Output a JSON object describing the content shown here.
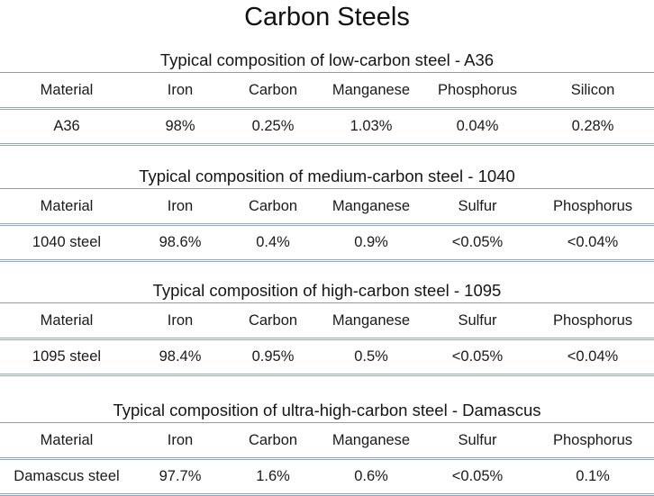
{
  "title": "Carbon Steels",
  "sections": [
    {
      "title": "Typical composition of low-carbon steel - A36",
      "headers": [
        "Material",
        "Iron",
        "Carbon",
        "Manganese",
        "Phosphorus",
        "Silicon"
      ],
      "values": [
        "A36",
        "98%",
        "0.25%",
        "1.03%",
        "0.04%",
        "0.28%"
      ]
    },
    {
      "title": "Typical composition of medium-carbon steel - 1040",
      "headers": [
        "Material",
        "Iron",
        "Carbon",
        "Manganese",
        "Sulfur",
        "Phosphorus"
      ],
      "values": [
        "1040 steel",
        "98.6%",
        "0.4%",
        "0.9%",
        "<0.05%",
        "<0.04%"
      ]
    },
    {
      "title": "Typical composition of high-carbon steel - 1095",
      "headers": [
        "Material",
        "Iron",
        "Carbon",
        "Manganese",
        "Sulfur",
        "Phosphorus"
      ],
      "values": [
        "1095 steel",
        "98.4%",
        "0.95%",
        "0.5%",
        "<0.05%",
        "<0.04%"
      ]
    },
    {
      "title": "Typical composition of ultra-high-carbon steel - Damascus",
      "headers": [
        "Material",
        "Iron",
        "Carbon",
        "Manganese",
        "Sulfur",
        "Phosphorus"
      ],
      "values": [
        "Damascus steel",
        "97.7%",
        "1.6%",
        "0.6%",
        "<0.05%",
        "0.1%"
      ]
    }
  ]
}
